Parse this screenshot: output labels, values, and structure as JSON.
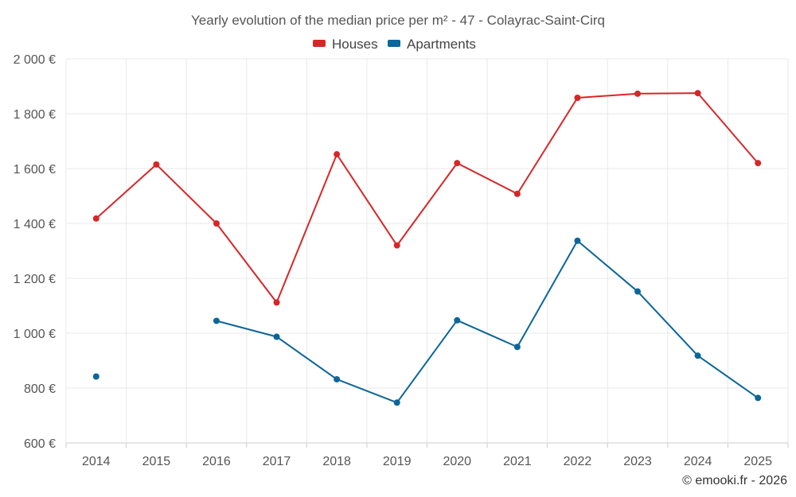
{
  "chart_data": {
    "type": "line",
    "title": "Yearly evolution of the median price per m² - 47 - Colayrac-Saint-Cirq",
    "categories": [
      "2014",
      "2015",
      "2016",
      "2017",
      "2018",
      "2019",
      "2020",
      "2021",
      "2022",
      "2023",
      "2024",
      "2025"
    ],
    "ylim": [
      600,
      2000
    ],
    "yticks": [
      600,
      800,
      1000,
      1200,
      1400,
      1600,
      1800,
      2000
    ],
    "ytick_labels": [
      "600 €",
      "800 €",
      "1 000 €",
      "1 200 €",
      "1 400 €",
      "1 600 €",
      "1 800 €",
      "2 000 €"
    ],
    "grid": true,
    "legend_position": "top-center",
    "series": [
      {
        "name": "Houses",
        "color": "#d62728",
        "values": [
          1418,
          1615,
          1400,
          1112,
          1652,
          1320,
          1620,
          1508,
          1858,
          1873,
          1875,
          1620
        ]
      },
      {
        "name": "Apartments",
        "color": "#0b6699",
        "values": [
          842,
          null,
          1045,
          987,
          832,
          747,
          1047,
          950,
          1337,
          1152,
          918,
          764
        ]
      }
    ]
  },
  "credit": "© emooki.fr - 2026"
}
